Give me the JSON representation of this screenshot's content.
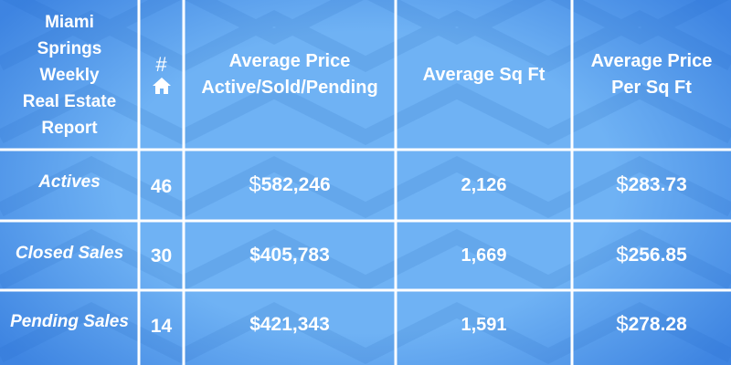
{
  "title_lines": [
    "Miami",
    "Springs",
    "Weekly",
    "Real Estate",
    "Report"
  ],
  "header": {
    "count_symbol": "#",
    "count_icon": "home-icon",
    "avg_price_lines": [
      "Average Price",
      "Active/Sold/Pending"
    ],
    "avg_sqft": "Average Sq Ft",
    "price_per_sqft_lines": [
      "Average Price",
      "Per Sq Ft"
    ]
  },
  "rows": [
    {
      "label": "Actives",
      "count": "46",
      "avg_price": "582,246",
      "avg_sqft": "2,126",
      "price_per_sqft": "283.73"
    },
    {
      "label": "Closed Sales",
      "count": "30",
      "avg_price": "$405,783",
      "avg_sqft": "1,669",
      "price_per_sqft": "256.85"
    },
    {
      "label": "Pending Sales",
      "count": "14",
      "avg_price": "$421,343",
      "avg_sqft": "1,591",
      "price_per_sqft": "278.28"
    }
  ],
  "currency_symbol": "$",
  "colors": {
    "background": "#6fb2f4",
    "edge": "#1e64d2",
    "lines": "#ffffff",
    "text": "#ffffff"
  }
}
